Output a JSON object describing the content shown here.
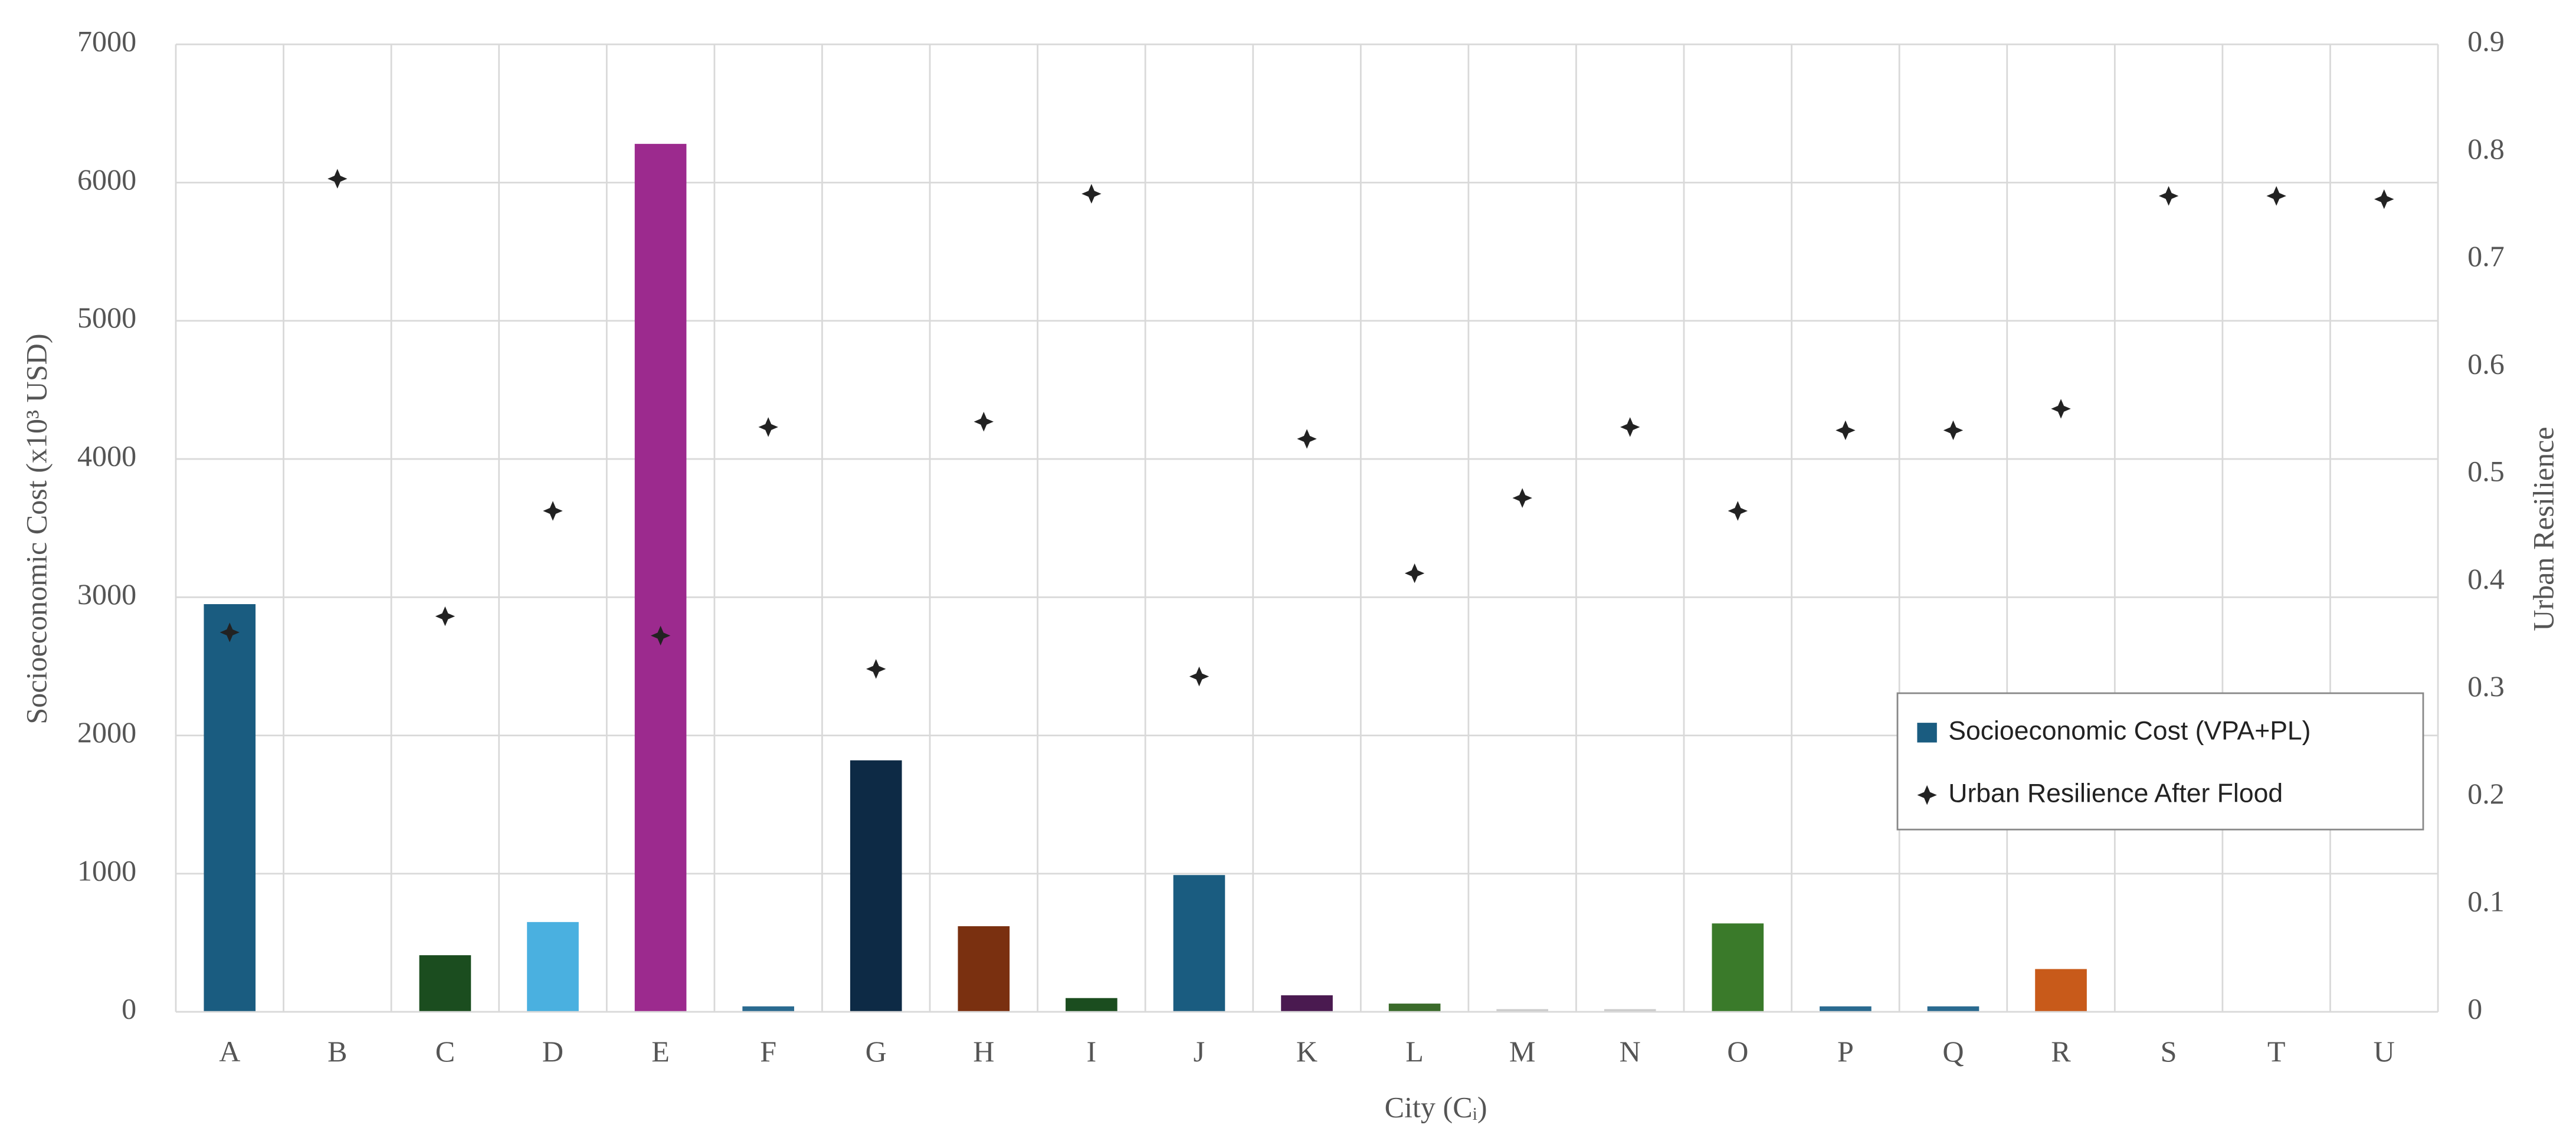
{
  "chart_data": {
    "type": "bar",
    "x_label": "City (Cᵢ)",
    "y_label": "Socioeconomic Cost (x10³ USD)",
    "y2_label": "Urban Resilience",
    "categories": [
      "A",
      "B",
      "C",
      "D",
      "E",
      "F",
      "G",
      "H",
      "I",
      "J",
      "K",
      "L",
      "M",
      "N",
      "O",
      "P",
      "Q",
      "R",
      "S",
      "T",
      "U"
    ],
    "series": [
      {
        "name": "Socioeconomic Cost (VPA+PL)",
        "type": "bar",
        "color": "#1a5c80",
        "colors": [
          "#1a5c80",
          "#1a5c80",
          "#1b4d1f",
          "#4ab0e0",
          "#9c2a8e",
          "#2a6a90",
          "#0d2a45",
          "#7a3010",
          "#1b4d1f",
          "#1a5c80",
          "#4a1a50",
          "#3a6a2a",
          "#cccccc",
          "#cccccc",
          "#3a7a2a",
          "#2a6a90",
          "#2a6a90",
          "#c85a1a",
          "#1a5c80",
          "#1a5c80",
          "#1a5c80"
        ],
        "values": [
          2950,
          0,
          410,
          650,
          6280,
          40,
          1820,
          620,
          100,
          990,
          120,
          60,
          20,
          20,
          640,
          40,
          40,
          310,
          0,
          0,
          0
        ]
      },
      {
        "name": "Urban Resilience After Flood",
        "type": "scatter",
        "axis": "y2",
        "color": "#222222",
        "values": [
          0.353,
          0.775,
          0.368,
          0.466,
          0.35,
          0.544,
          0.319,
          0.549,
          0.761,
          0.312,
          0.533,
          0.408,
          0.478,
          0.544,
          0.466,
          0.541,
          0.541,
          0.561,
          0.759,
          0.759,
          0.756
        ]
      }
    ],
    "ylim": [
      0,
      7000
    ],
    "yticks": [
      0,
      1000,
      2000,
      3000,
      4000,
      5000,
      6000,
      7000
    ],
    "y2lim": [
      0,
      0.9
    ],
    "y2ticks": [
      0,
      0.1,
      0.2,
      0.3,
      0.4,
      0.5,
      0.6,
      0.7,
      0.8,
      0.9
    ],
    "grid": true,
    "legend": "right"
  }
}
